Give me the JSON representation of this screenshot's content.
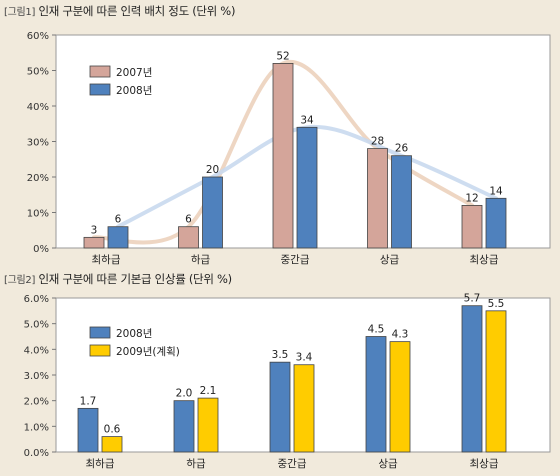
{
  "panels": [
    {
      "tag": "[그림1]",
      "title": "인재 구분에 따른 인력 배치 정도 (단위 %)"
    },
    {
      "tag": "[그림2]",
      "title": "인재 구분에 따른 기본급 인상률 (단위 %)"
    }
  ],
  "colors": {
    "background": "#f1eadc",
    "plot_bg": "#ffffff",
    "series_2007": "#d4a59a",
    "series_2008": "#4f81bd",
    "series_2009": "#ffcc00",
    "trend_2007": "#ecd2bd",
    "trend_2008": "#c9d9ee"
  },
  "chart_data": [
    {
      "type": "bar",
      "title": "인재 구분에 따른 인력 배치 정도 (단위 %)",
      "categories": [
        "최하급",
        "하급",
        "중간급",
        "상급",
        "최상급"
      ],
      "series": [
        {
          "name": "2007년",
          "values": [
            3,
            6,
            52,
            28,
            12
          ],
          "color": "#d4a59a"
        },
        {
          "name": "2008년",
          "values": [
            6,
            20,
            34,
            26,
            14
          ],
          "color": "#4f81bd"
        }
      ],
      "ylim": [
        0,
        60
      ],
      "yticks": [
        "0%",
        "10%",
        "20%",
        "30%",
        "40%",
        "50%",
        "60%"
      ],
      "data_labels": [
        [
          "3",
          "6",
          "52",
          "28",
          "12"
        ],
        [
          "6",
          "20",
          "34",
          "26",
          "14"
        ]
      ],
      "trend_lines": true,
      "grid": false,
      "legend": "top-left"
    },
    {
      "type": "bar",
      "title": "인재 구분에 따른 기본급 인상률 (단위 %)",
      "categories": [
        "최하급",
        "하급",
        "중간급",
        "상급",
        "최상급"
      ],
      "series": [
        {
          "name": "2008년",
          "values": [
            1.7,
            2.0,
            3.5,
            4.5,
            5.7
          ],
          "color": "#4f81bd"
        },
        {
          "name": "2009년(계획)",
          "values": [
            0.6,
            2.1,
            3.4,
            4.3,
            5.5
          ],
          "color": "#ffcc00"
        }
      ],
      "ylim": [
        0,
        6
      ],
      "yticks": [
        "0.0%",
        "1.0%",
        "2.0%",
        "3.0%",
        "4.0%",
        "5.0%",
        "6.0%"
      ],
      "data_labels": [
        [
          "1.7",
          "2.0",
          "3.5",
          "4.5",
          "5.7"
        ],
        [
          "0.6",
          "2.1",
          "3.4",
          "4.3",
          "5.5"
        ]
      ],
      "trend_lines": false,
      "grid": false,
      "legend": "top-left"
    }
  ]
}
